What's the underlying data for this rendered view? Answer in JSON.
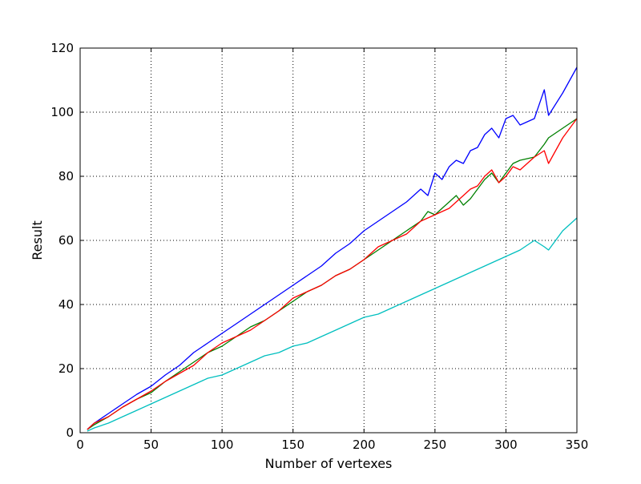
{
  "chart_data": {
    "type": "line",
    "title": "",
    "xlabel": "Number of vertexes",
    "ylabel": "Result",
    "xlim": [
      0,
      350
    ],
    "ylim": [
      0,
      120
    ],
    "xticks": [
      0,
      50,
      100,
      150,
      200,
      250,
      300,
      350
    ],
    "yticks": [
      0,
      20,
      40,
      60,
      80,
      100,
      120
    ],
    "grid": true,
    "legend": "none",
    "x": [
      5,
      10,
      20,
      30,
      40,
      50,
      60,
      70,
      80,
      90,
      100,
      110,
      120,
      130,
      140,
      150,
      160,
      170,
      180,
      190,
      200,
      210,
      220,
      230,
      240,
      245,
      250,
      255,
      260,
      265,
      270,
      275,
      280,
      285,
      290,
      295,
      300,
      305,
      310,
      320,
      327,
      330,
      340,
      350
    ],
    "series": [
      {
        "color": "#0000ff",
        "values": [
          1,
          3,
          6,
          9,
          12,
          14.5,
          18,
          21,
          25,
          28,
          31,
          34,
          37,
          40,
          43,
          46,
          49,
          52,
          56,
          59,
          63,
          66,
          69,
          72,
          76,
          74,
          81,
          79,
          83,
          85,
          84,
          88,
          89,
          93,
          95,
          92,
          98,
          99,
          96,
          98,
          107,
          99,
          106,
          114
        ]
      },
      {
        "color": "#008000",
        "values": [
          1,
          2.5,
          5,
          8,
          10.5,
          12.5,
          16,
          19,
          22,
          25,
          27,
          30,
          33,
          35,
          38,
          41,
          44,
          46,
          49,
          51,
          54,
          57,
          60,
          63,
          66,
          69,
          68,
          70,
          72,
          74,
          71,
          73,
          76,
          79,
          81,
          78,
          81,
          84,
          85,
          86,
          90,
          92,
          95,
          98
        ]
      },
      {
        "color": "#ff0000",
        "values": [
          1,
          3,
          5,
          8,
          10.5,
          13,
          16,
          18.5,
          21,
          25,
          28,
          30,
          32,
          35,
          38,
          42,
          44,
          46,
          49,
          51,
          54,
          58,
          60,
          62,
          66,
          67,
          68,
          69,
          70,
          72,
          74,
          76,
          77,
          80,
          82,
          78,
          80,
          83,
          82,
          86,
          88,
          84,
          92,
          98
        ]
      },
      {
        "color": "#00bfbf",
        "values": [
          0.5,
          1.5,
          3,
          5,
          7,
          9,
          11,
          13,
          15,
          17,
          18,
          20,
          22,
          24,
          25,
          27,
          28,
          30,
          32,
          34,
          36,
          37,
          39,
          41,
          43,
          44,
          45,
          46,
          47,
          48,
          49,
          50,
          51,
          52,
          53,
          54,
          55,
          56,
          57,
          60,
          58,
          57,
          63,
          67
        ]
      }
    ]
  }
}
